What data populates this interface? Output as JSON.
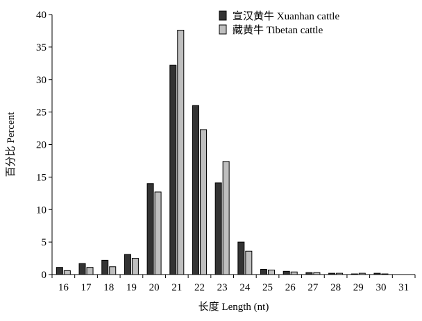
{
  "chart_data": {
    "type": "bar",
    "categories": [
      "16",
      "17",
      "18",
      "19",
      "20",
      "21",
      "22",
      "23",
      "24",
      "25",
      "26",
      "27",
      "28",
      "29",
      "30",
      "31"
    ],
    "series": [
      {
        "name": "宣汉黄牛 Xuanhan cattle",
        "color": "#333333",
        "values": [
          1.1,
          1.7,
          2.2,
          3.1,
          14.0,
          32.2,
          26.0,
          14.1,
          5.0,
          0.8,
          0.5,
          0.3,
          0.2,
          0.1,
          0.2,
          0.0
        ]
      },
      {
        "name": "藏黄牛 Tibetan cattle",
        "color": "#bfbfbf",
        "values": [
          0.6,
          1.1,
          1.2,
          2.5,
          12.7,
          37.6,
          22.3,
          17.4,
          3.6,
          0.7,
          0.4,
          0.3,
          0.2,
          0.2,
          0.1,
          0.0
        ]
      }
    ],
    "ylim": [
      0,
      40
    ],
    "yticks": [
      "0",
      "5",
      "10",
      "15",
      "20",
      "25",
      "30",
      "35",
      "40"
    ],
    "xlabel": "长度 Length (nt)",
    "ylabel": "百分比 Percent",
    "legend_position": "top-right",
    "grid": false
  }
}
